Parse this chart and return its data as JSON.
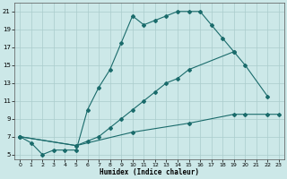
{
  "xlabel": "Humidex (Indice chaleur)",
  "xlim": [
    -0.5,
    23.5
  ],
  "ylim": [
    4.5,
    22
  ],
  "xticks": [
    0,
    1,
    2,
    3,
    4,
    5,
    6,
    7,
    8,
    9,
    10,
    11,
    12,
    13,
    14,
    15,
    16,
    17,
    18,
    19,
    20,
    21,
    22,
    23
  ],
  "yticks": [
    5,
    7,
    9,
    11,
    13,
    15,
    17,
    19,
    21
  ],
  "bg_color": "#cce8e8",
  "grid_color": "#aacccc",
  "line_color": "#1a6b6b",
  "curve1_x": [
    0,
    1,
    2,
    3,
    4,
    5,
    6,
    7,
    8,
    9,
    10,
    11,
    12,
    13,
    14,
    15,
    16,
    17,
    18,
    19
  ],
  "curve1_y": [
    7.0,
    6.3,
    5.0,
    5.5,
    5.5,
    5.5,
    10.0,
    12.5,
    14.5,
    17.5,
    20.5,
    19.5,
    20.0,
    20.5,
    21.0,
    21.0,
    21.0,
    19.5,
    18.0,
    16.5
  ],
  "curve2_x": [
    0,
    5,
    6,
    7,
    8,
    9,
    10,
    11,
    12,
    13,
    14,
    15,
    19,
    20,
    22
  ],
  "curve2_y": [
    7.0,
    6.0,
    6.5,
    7.0,
    8.0,
    9.0,
    10.0,
    11.0,
    12.0,
    13.0,
    13.5,
    14.5,
    16.5,
    15.0,
    11.5
  ],
  "curve3_x": [
    0,
    5,
    10,
    15,
    19,
    20,
    22,
    23
  ],
  "curve3_y": [
    7.0,
    6.0,
    7.5,
    8.5,
    9.5,
    9.5,
    9.5,
    9.5
  ]
}
